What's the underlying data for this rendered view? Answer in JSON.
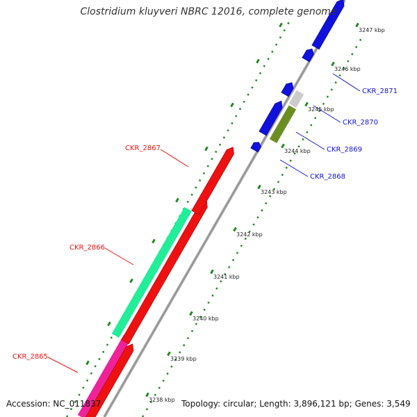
{
  "title": "Clostridium kluyveri NBRC 12016, complete genome",
  "footer": {
    "accession": "Accession: NC_011837",
    "summary": "Topology: circular; Length: 3,896,121 bp; Genes: 3,549"
  },
  "colors": {
    "reverse_strand": "#ee1111",
    "forward_strand": "#1111dd",
    "cog_green": "#22ee99",
    "cog_magenta": "#ee2299",
    "cog_olive": "#6b8e23",
    "cog_gray": "#cccccc",
    "backbone": "#999999",
    "tick": "#228822"
  },
  "ticks": [
    {
      "kbp": 3238,
      "label": "3238 kbp"
    },
    {
      "kbp": 3239,
      "label": "3239 kbp"
    },
    {
      "kbp": 3240,
      "label": "3240 kbp"
    },
    {
      "kbp": 3241,
      "label": "3241 kbp"
    },
    {
      "kbp": 3242,
      "label": "3242 kbp"
    },
    {
      "kbp": 3243,
      "label": "3243 kbp"
    },
    {
      "kbp": 3244,
      "label": "3244 kbp"
    },
    {
      "kbp": 3245,
      "label": "3245 kbp"
    },
    {
      "kbp": 3246,
      "label": "3246 kbp"
    },
    {
      "kbp": 3247,
      "label": "3247 kbp"
    }
  ],
  "genes": [
    {
      "name": "CKR_2865",
      "strand": "reverse"
    },
    {
      "name": "CKR_2866",
      "strand": "reverse"
    },
    {
      "name": "CKR_2867",
      "strand": "reverse"
    },
    {
      "name": "CKR_2868",
      "strand": "forward"
    },
    {
      "name": "CKR_2869",
      "strand": "forward"
    },
    {
      "name": "CKR_2870",
      "strand": "forward"
    },
    {
      "name": "CKR_2871",
      "strand": "forward"
    }
  ]
}
